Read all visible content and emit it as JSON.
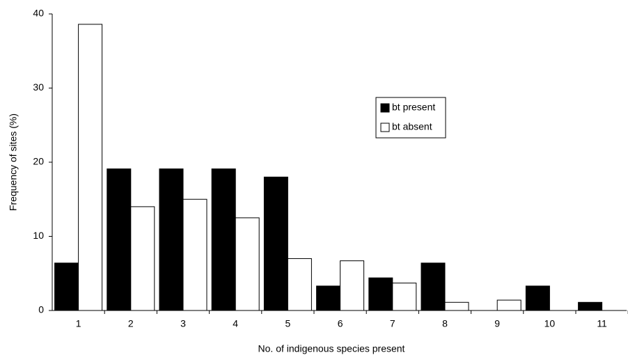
{
  "chart_data": {
    "type": "bar",
    "x_label": "No. of indigenous species present",
    "y_label": "Frequency of sites (%)",
    "categories": [
      "1",
      "2",
      "3",
      "4",
      "5",
      "6",
      "7",
      "8",
      "9",
      "10",
      "11"
    ],
    "series": [
      {
        "name": "bt present",
        "color": "#000000",
        "values": [
          6.4,
          19.1,
          19.1,
          19.1,
          18.0,
          3.3,
          4.4,
          6.4,
          0,
          3.3,
          1.1
        ]
      },
      {
        "name": "bt absent",
        "color": "#ffffff",
        "values": [
          38.6,
          14.0,
          15.0,
          12.5,
          7.0,
          6.7,
          3.7,
          1.1,
          1.4,
          0,
          0
        ]
      }
    ],
    "ylim": [
      0,
      40
    ],
    "yticks": [
      0,
      10,
      20,
      30,
      40
    ],
    "grid": false,
    "legend": "upper right"
  }
}
